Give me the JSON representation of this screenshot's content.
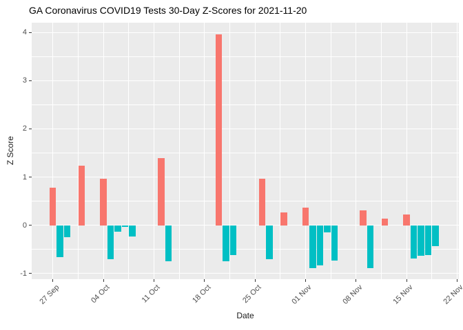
{
  "chart_data": {
    "type": "bar",
    "title": "GA Coronavirus COVID19 Tests 30-Day Z-Scores for 2021-11-20",
    "xlabel": "Date",
    "ylabel": "Z Score",
    "ylim": [
      -1.115,
      4.2
    ],
    "xlim_days": [
      -2.93,
      56.25
    ],
    "grid": "on",
    "legend": "none",
    "y_major_ticks": [
      4,
      3,
      2,
      1,
      0,
      -1
    ],
    "y_minor_ticks": [
      3.5,
      2.5,
      1.5,
      0.5,
      -0.5
    ],
    "x_ticks": [
      {
        "day": 0,
        "label": "27 Sep"
      },
      {
        "day": 7,
        "label": "04 Oct"
      },
      {
        "day": 14,
        "label": "11 Oct"
      },
      {
        "day": 21,
        "label": "18 Oct"
      },
      {
        "day": 28,
        "label": "25 Oct"
      },
      {
        "day": 35,
        "label": "01 Nov"
      },
      {
        "day": 42,
        "label": "08 Nov"
      },
      {
        "day": 49,
        "label": "15 Nov"
      },
      {
        "day": 56,
        "label": "22 Nov"
      }
    ],
    "x_minor_days": [
      3.5,
      10.5,
      17.5,
      24.5,
      31.5,
      38.5,
      45.5,
      52.5
    ],
    "bar_width_days": 0.9,
    "colors": {
      "positive": "#F8766D",
      "negative": "#00BFC4",
      "panel_bg": "#EBEBEB",
      "grid": "#FFFFFF",
      "tick_text": "#4D4D4D",
      "title_text": "#000000"
    },
    "bars": [
      {
        "date": "27 Sep",
        "day": 0,
        "value": 0.78
      },
      {
        "date": "28 Sep",
        "day": 1,
        "value": -0.66
      },
      {
        "date": "29 Sep",
        "day": 2,
        "value": -0.25
      },
      {
        "date": "01 Oct",
        "day": 4,
        "value": 1.23
      },
      {
        "date": "04 Oct",
        "day": 7,
        "value": 0.97
      },
      {
        "date": "05 Oct",
        "day": 8,
        "value": -0.7
      },
      {
        "date": "06 Oct",
        "day": 9,
        "value": -0.13
      },
      {
        "date": "07 Oct",
        "day": 10,
        "value": -0.03
      },
      {
        "date": "08 Oct",
        "day": 11,
        "value": -0.23
      },
      {
        "date": "12 Oct",
        "day": 15,
        "value": 1.4
      },
      {
        "date": "13 Oct",
        "day": 16,
        "value": -0.74
      },
      {
        "date": "20 Oct",
        "day": 23,
        "value": 3.96
      },
      {
        "date": "21 Oct",
        "day": 24,
        "value": -0.74
      },
      {
        "date": "22 Oct",
        "day": 25,
        "value": -0.62
      },
      {
        "date": "26 Oct",
        "day": 29,
        "value": 0.96
      },
      {
        "date": "27 Oct",
        "day": 30,
        "value": -0.7
      },
      {
        "date": "29 Oct",
        "day": 32,
        "value": 0.27
      },
      {
        "date": "01 Nov",
        "day": 35,
        "value": 0.36
      },
      {
        "date": "02 Nov",
        "day": 36,
        "value": -0.88
      },
      {
        "date": "03 Nov",
        "day": 37,
        "value": -0.83
      },
      {
        "date": "04 Nov",
        "day": 38,
        "value": -0.14
      },
      {
        "date": "05 Nov",
        "day": 39,
        "value": -0.73
      },
      {
        "date": "09 Nov",
        "day": 43,
        "value": 0.31
      },
      {
        "date": "10 Nov",
        "day": 44,
        "value": -0.88
      },
      {
        "date": "12 Nov",
        "day": 46,
        "value": 0.14
      },
      {
        "date": "15 Nov",
        "day": 49,
        "value": 0.23
      },
      {
        "date": "16 Nov",
        "day": 50,
        "value": -0.69
      },
      {
        "date": "17 Nov",
        "day": 51,
        "value": -0.63
      },
      {
        "date": "18 Nov",
        "day": 52,
        "value": -0.61
      },
      {
        "date": "19 Nov",
        "day": 53,
        "value": -0.43
      }
    ]
  }
}
